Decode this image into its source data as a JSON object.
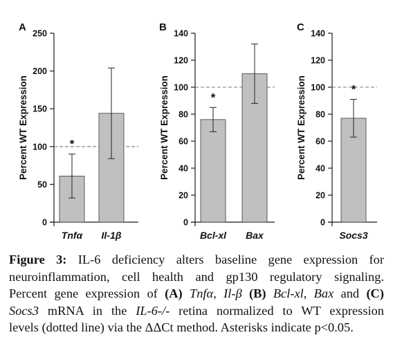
{
  "chart_data": [
    {
      "type": "bar",
      "panel_label": "A",
      "ylabel": "Percent WT Expression",
      "ylim": [
        0,
        250
      ],
      "yticks": [
        0,
        50,
        100,
        150,
        200,
        250
      ],
      "reference_line": 100,
      "categories": [
        "Tnfα",
        "Il-1β"
      ],
      "values": [
        61,
        144
      ],
      "error": [
        29,
        60
      ],
      "significance": [
        "*",
        ""
      ]
    },
    {
      "type": "bar",
      "panel_label": "B",
      "ylabel": "Percent WT Expression",
      "ylim": [
        0,
        140
      ],
      "yticks": [
        0,
        20,
        40,
        60,
        80,
        100,
        120,
        140
      ],
      "reference_line": 100,
      "categories": [
        "Bcl-xl",
        "Bax"
      ],
      "values": [
        76,
        110
      ],
      "error": [
        9,
        22
      ],
      "significance": [
        "*",
        ""
      ]
    },
    {
      "type": "bar",
      "panel_label": "C",
      "ylabel": "Percent WT Expression",
      "ylim": [
        0,
        140
      ],
      "yticks": [
        0,
        20,
        40,
        60,
        80,
        100,
        120,
        140
      ],
      "reference_line": 100,
      "categories": [
        "Socs3"
      ],
      "values": [
        77
      ],
      "error": [
        14
      ],
      "significance": [
        "*"
      ]
    }
  ],
  "caption": {
    "label": "Figure 3:",
    "lines": [
      " IL-6 deficiency alters baseline gene expression for",
      "neuroinflammation, cell health and gp130 regulatory signaling.",
      "Percent gene expression of (A) Tnfα, Il-β (B) Bcl-xl, Bax and (C)",
      "Socs3 mRNA in the IL-6-/- retina normalized to WT expression",
      "levels (dotted line) via the ΔΔCt method. Asterisks indicate p<0.05."
    ]
  },
  "colors": {
    "bar_fill": "#c0c0c0",
    "bar_stroke": "#3a3a3a",
    "reference_line": "#7a7a7a",
    "axis": "#1a1a1a",
    "text": "#111111"
  }
}
